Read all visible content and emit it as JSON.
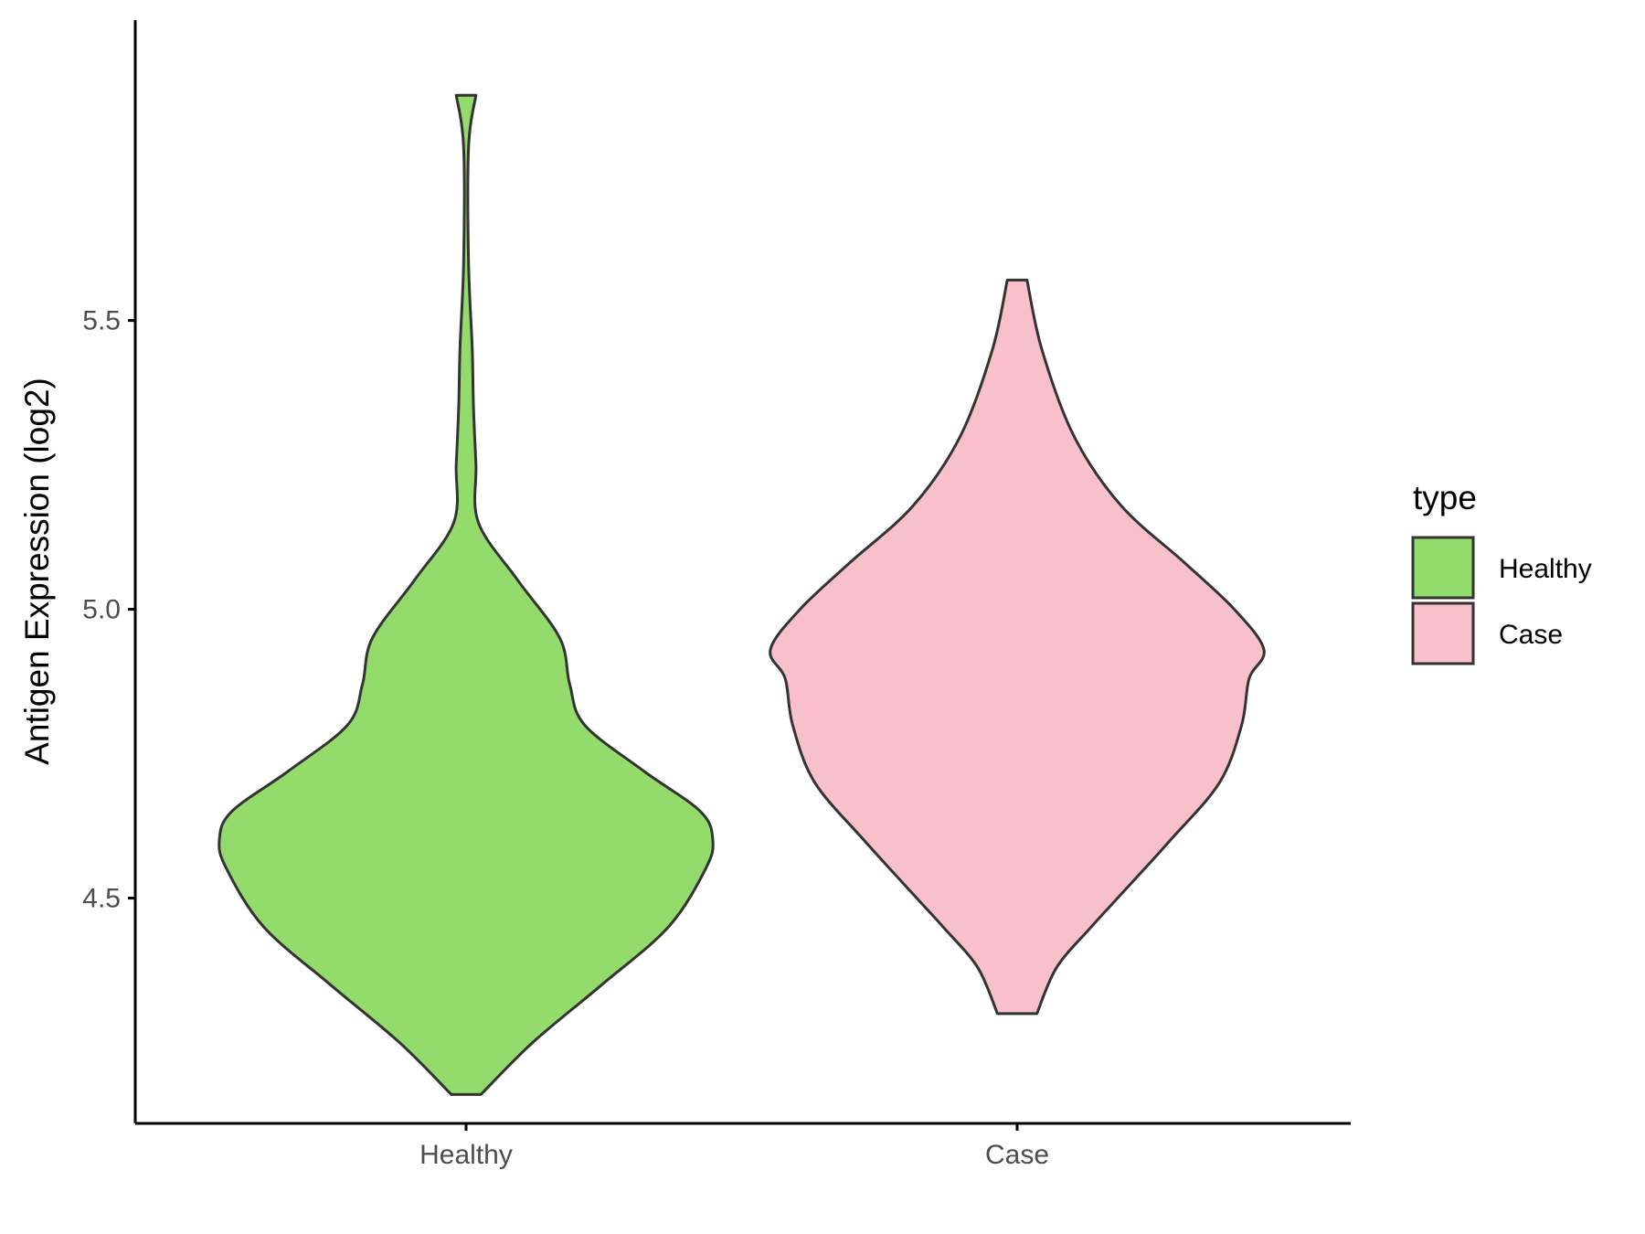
{
  "chart_data": {
    "type": "violin",
    "title": "",
    "xlabel": "",
    "ylabel": "Antigen Expression (log2)",
    "ylim": [
      4.11,
      6.02
    ],
    "yticks": [
      4.5,
      5.0,
      5.5
    ],
    "ytick_labels": [
      "4.5",
      "5.0",
      "5.5"
    ],
    "categories": [
      "Healthy",
      "Case"
    ],
    "grid": false,
    "legend": {
      "title": "type",
      "position": "right",
      "entries": [
        "Healthy",
        "Case"
      ]
    },
    "series": [
      {
        "name": "Healthy",
        "color": "#93DB6A",
        "min": 4.16,
        "max": 5.89,
        "density_profile": [
          [
            4.16,
            0.06
          ],
          [
            4.25,
            0.27
          ],
          [
            4.35,
            0.55
          ],
          [
            4.45,
            0.82
          ],
          [
            4.55,
            0.97
          ],
          [
            4.6,
            1.0
          ],
          [
            4.65,
            0.95
          ],
          [
            4.72,
            0.72
          ],
          [
            4.8,
            0.48
          ],
          [
            4.87,
            0.42
          ],
          [
            4.95,
            0.38
          ],
          [
            5.05,
            0.21
          ],
          [
            5.15,
            0.05
          ],
          [
            5.25,
            0.04
          ],
          [
            5.35,
            0.03
          ],
          [
            5.45,
            0.025
          ],
          [
            5.6,
            0.01
          ],
          [
            5.8,
            0.01
          ],
          [
            5.89,
            0.04
          ]
        ]
      },
      {
        "name": "Case",
        "color": "#F8C0CB",
        "min": 4.3,
        "max": 5.57,
        "density_profile": [
          [
            4.3,
            0.08
          ],
          [
            4.38,
            0.16
          ],
          [
            4.45,
            0.3
          ],
          [
            4.52,
            0.45
          ],
          [
            4.6,
            0.62
          ],
          [
            4.7,
            0.82
          ],
          [
            4.8,
            0.91
          ],
          [
            4.88,
            0.94
          ],
          [
            4.93,
            1.0
          ],
          [
            5.0,
            0.88
          ],
          [
            5.08,
            0.68
          ],
          [
            5.18,
            0.42
          ],
          [
            5.3,
            0.23
          ],
          [
            5.45,
            0.1
          ],
          [
            5.57,
            0.04
          ]
        ]
      }
    ]
  }
}
